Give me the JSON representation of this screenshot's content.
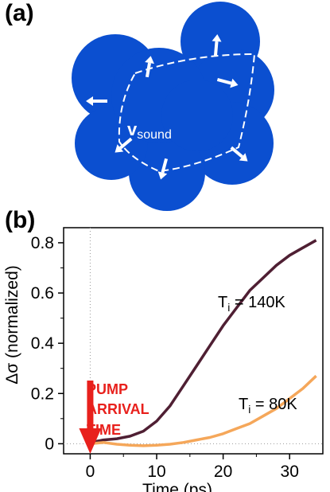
{
  "panel_a": {
    "label": "(a)",
    "velocity_label": "v",
    "velocity_subscript": "sound",
    "blob_color": "#0b4fd0",
    "arrow_color": "#ffffff"
  },
  "panel_b": {
    "label": "(b)",
    "annotation_lines": [
      "PUMP",
      "ARRIVAL",
      "TIME"
    ],
    "annotation_color": "#e8201c",
    "curve_labels": [
      {
        "prefix": "T",
        "sub": "i",
        "suffix": " = 140K"
      },
      {
        "prefix": "T",
        "sub": "i",
        "suffix": " = 80K"
      }
    ]
  },
  "chart_data": {
    "type": "line",
    "title": "",
    "xlabel": "Time (ps)",
    "ylabel": "Δσ (normalized)",
    "xlim": [
      -4,
      35
    ],
    "ylim": [
      -0.04,
      0.86
    ],
    "xticks": [
      0,
      10,
      20,
      30
    ],
    "yticks": [
      0,
      0.2,
      0.4,
      0.6,
      0.8
    ],
    "xtick_labels": [
      "0",
      "10",
      "20",
      "30"
    ],
    "ytick_labels": [
      "0",
      "0.2",
      "0.4",
      "0.6",
      "0.8"
    ],
    "grid": false,
    "legend": "none",
    "series": [
      {
        "color": "#4f1f33",
        "x": [
          0,
          2,
          4,
          6,
          8,
          10,
          12,
          14,
          16,
          18,
          20,
          22,
          24,
          26,
          28,
          30,
          32,
          34
        ],
        "y": [
          0.005,
          0.015,
          0.02,
          0.03,
          0.05,
          0.09,
          0.15,
          0.23,
          0.31,
          0.39,
          0.47,
          0.54,
          0.61,
          0.66,
          0.71,
          0.75,
          0.78,
          0.81
        ]
      },
      {
        "color": "#f5a75a",
        "x": [
          0,
          2,
          4,
          6,
          8,
          10,
          12,
          14,
          16,
          18,
          20,
          22,
          24,
          26,
          28,
          30,
          32,
          34
        ],
        "y": [
          0.0,
          0.005,
          -0.002,
          -0.006,
          -0.008,
          -0.006,
          -0.002,
          0.005,
          0.015,
          0.025,
          0.04,
          0.06,
          0.08,
          0.11,
          0.14,
          0.18,
          0.22,
          0.27
        ]
      }
    ],
    "reference_lines": {
      "x": 0,
      "y": 0
    }
  }
}
